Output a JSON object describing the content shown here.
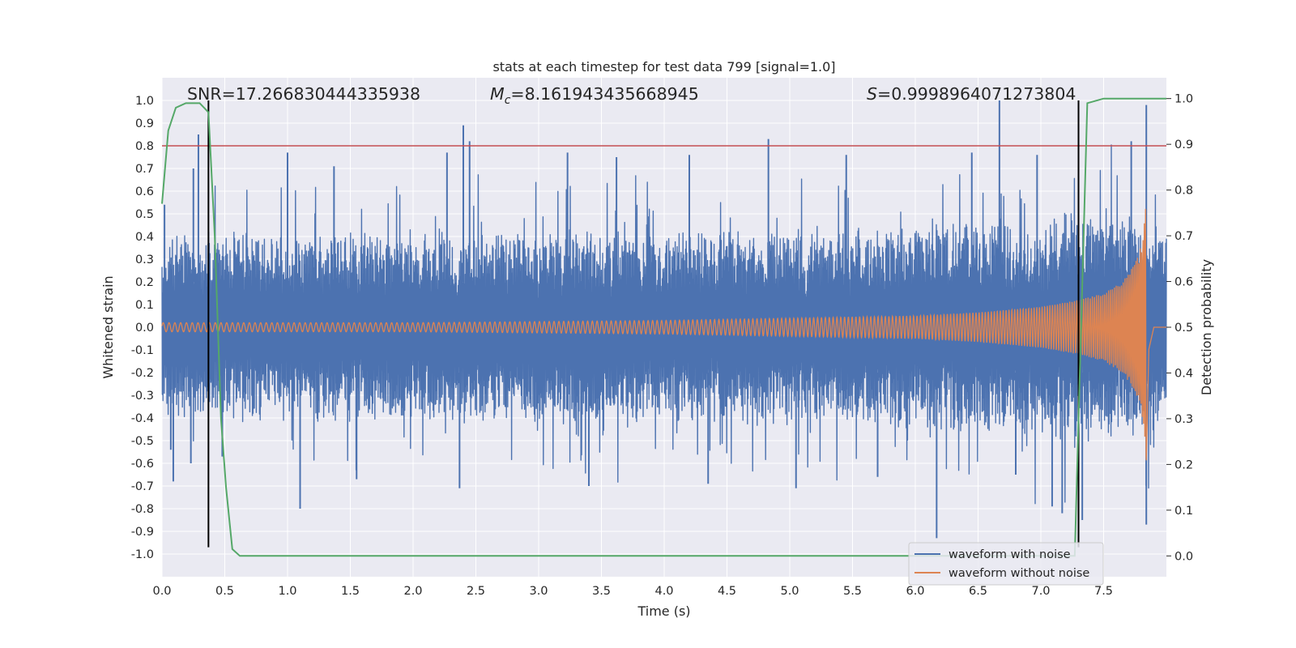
{
  "chart_data": {
    "type": "line",
    "title": "stats at each timestep for test data 799 [signal=1.0]",
    "xlabel": "Time (s)",
    "ylabel": "Whitened strain",
    "y2label": "Detection probability",
    "xlim": [
      0.0,
      8.0
    ],
    "ylim": [
      -1.1,
      1.1
    ],
    "y2lim": [
      -0.0455,
      1.0455
    ],
    "x_ticks": [
      "0.0",
      "0.5",
      "1.0",
      "1.5",
      "2.0",
      "2.5",
      "3.0",
      "3.5",
      "4.0",
      "4.5",
      "5.0",
      "5.5",
      "6.0",
      "6.5",
      "7.0",
      "7.5"
    ],
    "y_ticks": [
      "1.0",
      "0.9",
      "0.8",
      "0.7",
      "0.6",
      "0.5",
      "0.4",
      "0.3",
      "0.2",
      "0.1",
      "0.0",
      "-0.1",
      "-0.2",
      "-0.3",
      "-0.4",
      "-0.5",
      "-0.6",
      "-0.7",
      "-0.8",
      "-0.9",
      "-1.0"
    ],
    "y2_ticks": [
      "1.0",
      "0.9",
      "0.8",
      "0.7",
      "0.6",
      "0.5",
      "0.4",
      "0.3",
      "0.2",
      "0.1",
      "0.0"
    ],
    "grid": true,
    "legend_position": "lower-right",
    "annotations": {
      "snr": "SNR=17.266830444335938",
      "mc_symbol": "M",
      "mc_sub": "c",
      "mc_value": "=8.161943435668945",
      "s_symbol": "S",
      "s_value": "=0.9998964071273804"
    },
    "series": [
      {
        "name": "waveform with noise",
        "color": "#4c72b0",
        "axis": "left",
        "envelope_x": [
          0.0,
          1.0,
          2.0,
          3.0,
          4.0,
          5.0,
          6.0,
          7.0,
          7.5,
          7.9,
          8.0
        ],
        "envelope_typical": [
          0.35,
          0.35,
          0.36,
          0.36,
          0.36,
          0.37,
          0.38,
          0.42,
          0.45,
          0.4,
          0.35
        ],
        "spikes": [
          {
            "x": 0.02,
            "y": 0.54
          },
          {
            "x": 0.07,
            "y": -0.54
          },
          {
            "x": 0.09,
            "y": -0.68
          },
          {
            "x": 0.23,
            "y": -0.6
          },
          {
            "x": 0.25,
            "y": 0.7
          },
          {
            "x": 0.29,
            "y": 0.85
          },
          {
            "x": 0.48,
            "y": -0.57
          },
          {
            "x": 1.0,
            "y": 0.77
          },
          {
            "x": 1.1,
            "y": -0.8
          },
          {
            "x": 1.37,
            "y": 0.71
          },
          {
            "x": 1.55,
            "y": -0.67
          },
          {
            "x": 2.27,
            "y": 0.77
          },
          {
            "x": 2.37,
            "y": -0.71
          },
          {
            "x": 2.4,
            "y": 0.89
          },
          {
            "x": 2.45,
            "y": 0.82
          },
          {
            "x": 3.23,
            "y": 0.77
          },
          {
            "x": 3.4,
            "y": -0.7
          },
          {
            "x": 3.62,
            "y": 0.75
          },
          {
            "x": 4.2,
            "y": 0.76
          },
          {
            "x": 4.35,
            "y": -0.69
          },
          {
            "x": 4.83,
            "y": 0.83
          },
          {
            "x": 5.05,
            "y": -0.71
          },
          {
            "x": 5.45,
            "y": 0.76
          },
          {
            "x": 5.7,
            "y": -0.66
          },
          {
            "x": 6.17,
            "y": -0.93
          },
          {
            "x": 6.45,
            "y": 0.77
          },
          {
            "x": 6.67,
            "y": 1.0
          },
          {
            "x": 6.8,
            "y": -0.65
          },
          {
            "x": 6.97,
            "y": 0.76
          },
          {
            "x": 7.09,
            "y": -0.79
          },
          {
            "x": 7.17,
            "y": -0.82
          },
          {
            "x": 7.33,
            "y": -0.85
          },
          {
            "x": 7.72,
            "y": 0.82
          },
          {
            "x": 7.84,
            "y": 0.98
          },
          {
            "x": 7.84,
            "y": -0.87
          }
        ]
      },
      {
        "name": "waveform without noise",
        "color": "#dd8452",
        "axis": "left",
        "chirp_x": [
          0.0,
          1.0,
          2.0,
          3.0,
          4.0,
          5.0,
          6.0,
          6.5,
          7.0,
          7.3,
          7.5,
          7.65,
          7.75,
          7.8,
          7.82,
          7.84,
          7.86,
          7.9,
          8.0
        ],
        "chirp_amplitude": [
          0.02,
          0.02,
          0.02,
          0.025,
          0.03,
          0.04,
          0.05,
          0.065,
          0.09,
          0.12,
          0.15,
          0.2,
          0.28,
          0.36,
          0.45,
          0.6,
          0.1,
          0.0,
          0.0
        ],
        "chirp_cycles": 640
      },
      {
        "name": "",
        "color": "#55a868",
        "axis": "right",
        "x": [
          0.0,
          0.05,
          0.11,
          0.19,
          0.3,
          0.37,
          0.42,
          0.47,
          0.51,
          0.56,
          0.62,
          1.0,
          3.0,
          5.0,
          7.0,
          7.27,
          7.37,
          7.5,
          8.0
        ],
        "y": [
          0.77,
          0.93,
          0.98,
          0.99,
          0.99,
          0.97,
          0.7,
          0.3,
          0.15,
          0.015,
          0.0,
          0.0,
          0.0,
          0.0,
          0.0,
          0.0,
          0.99,
          1.0,
          1.0
        ]
      }
    ],
    "hlines": [
      {
        "y": 0.8,
        "color": "#c44e52",
        "axis": "left"
      }
    ],
    "vlines": [
      {
        "x": 0.37,
        "color": "#000000"
      },
      {
        "x": 7.3,
        "color": "#000000"
      }
    ]
  }
}
